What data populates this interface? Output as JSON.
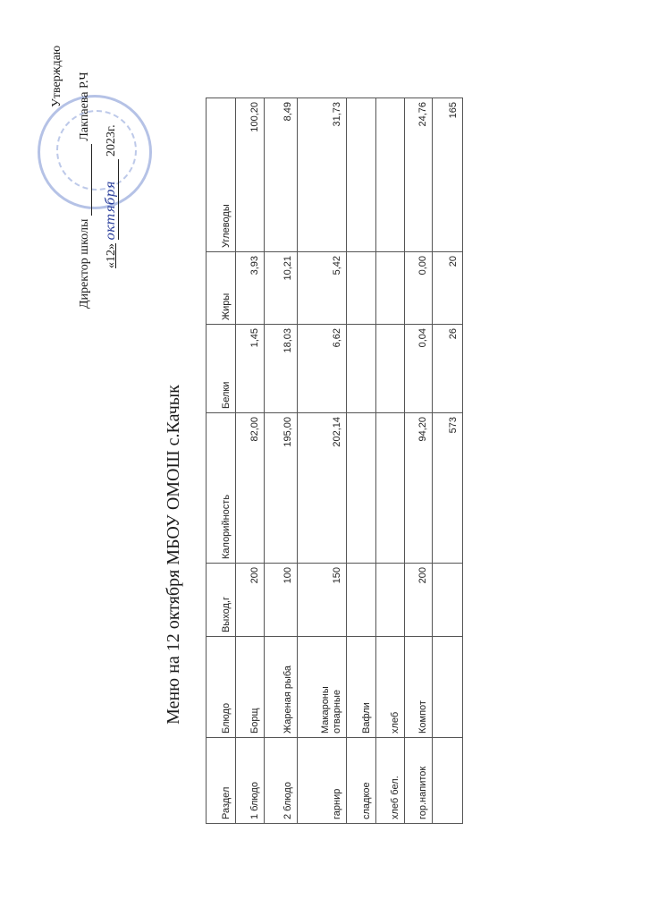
{
  "approval": {
    "approve": "Утверждаю",
    "director_label": "Директор школы",
    "director_name": "Лакпаева Р.Ч",
    "date_day": "«12»",
    "date_month": "октября",
    "date_year": "2023г."
  },
  "title": "Меню на 12 октября МБОУ ОМОШ с.Качык",
  "table": {
    "headers": [
      "Раздел",
      "Блюдо",
      "Выход,г",
      "Калорийность",
      "Белки",
      "Жиры",
      "Углеводы"
    ],
    "rows": [
      [
        "1 блюдо",
        "Борщ",
        "200",
        "82,00",
        "1,45",
        "3,93",
        "100,20"
      ],
      [
        "2 блюдо",
        "Жареная рыба",
        "100",
        "195,00",
        "18,03",
        "10,21",
        "8,49"
      ],
      [
        "гарнир",
        "Макароны отварные",
        "150",
        "202,14",
        "6,62",
        "5,42",
        "31,73"
      ],
      [
        "сладкое",
        "Вафли",
        "",
        "",
        "",
        "",
        ""
      ],
      [
        "хлеб бел.",
        "хлеб",
        "",
        "",
        "",
        "",
        ""
      ],
      [
        "гор.напиток",
        "Компот",
        "200",
        "94,20",
        "0,04",
        "0,00",
        "24,76"
      ],
      [
        "",
        "",
        "",
        "573",
        "26",
        "20",
        "165"
      ]
    ]
  },
  "colors": {
    "stamp": "#5a78c8",
    "signature": "#2b3f9c"
  }
}
